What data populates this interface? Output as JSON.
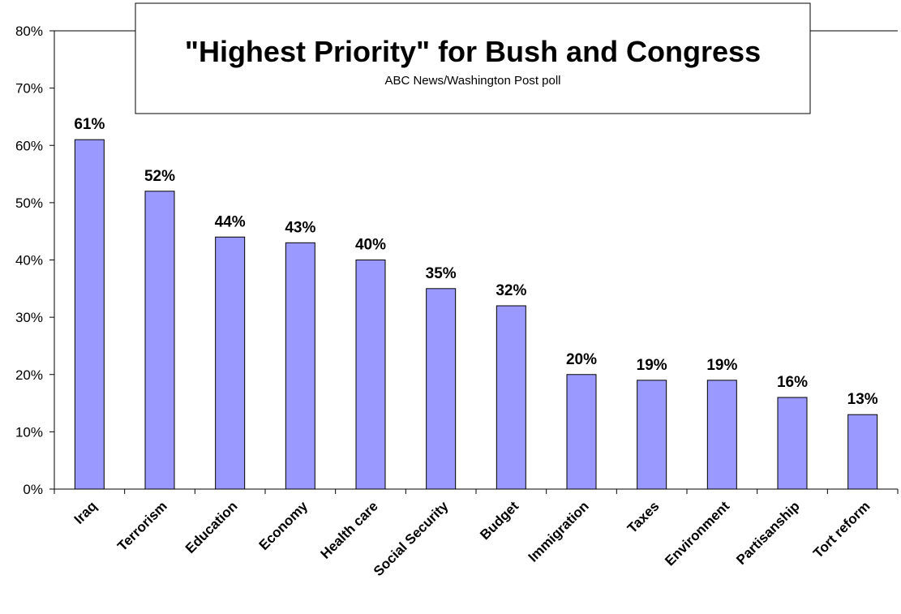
{
  "chart_data": {
    "type": "bar",
    "title": "\"Highest Priority\" for Bush and Congress",
    "subtitle": "ABC News/Washington Post poll",
    "categories": [
      "Iraq",
      "Terrorism",
      "Education",
      "Economy",
      "Health care",
      "Social Security",
      "Budget",
      "Immigration",
      "Taxes",
      "Environment",
      "Partisanship",
      "Tort reform"
    ],
    "values": [
      61,
      52,
      44,
      43,
      40,
      35,
      32,
      20,
      19,
      19,
      16,
      13
    ],
    "data_labels": [
      "61%",
      "52%",
      "44%",
      "43%",
      "40%",
      "35%",
      "32%",
      "20%",
      "19%",
      "19%",
      "16%",
      "13%"
    ],
    "ylim": [
      0,
      80
    ],
    "yticks": [
      0,
      10,
      20,
      30,
      40,
      50,
      60,
      70,
      80
    ],
    "ytick_labels": [
      "0%",
      "10%",
      "20%",
      "30%",
      "40%",
      "50%",
      "60%",
      "70%",
      "80%"
    ],
    "xlabel": "",
    "ylabel": "",
    "grid": false,
    "legend": "none",
    "bar_color": "#9999ff",
    "bar_border_color": "#000000"
  }
}
